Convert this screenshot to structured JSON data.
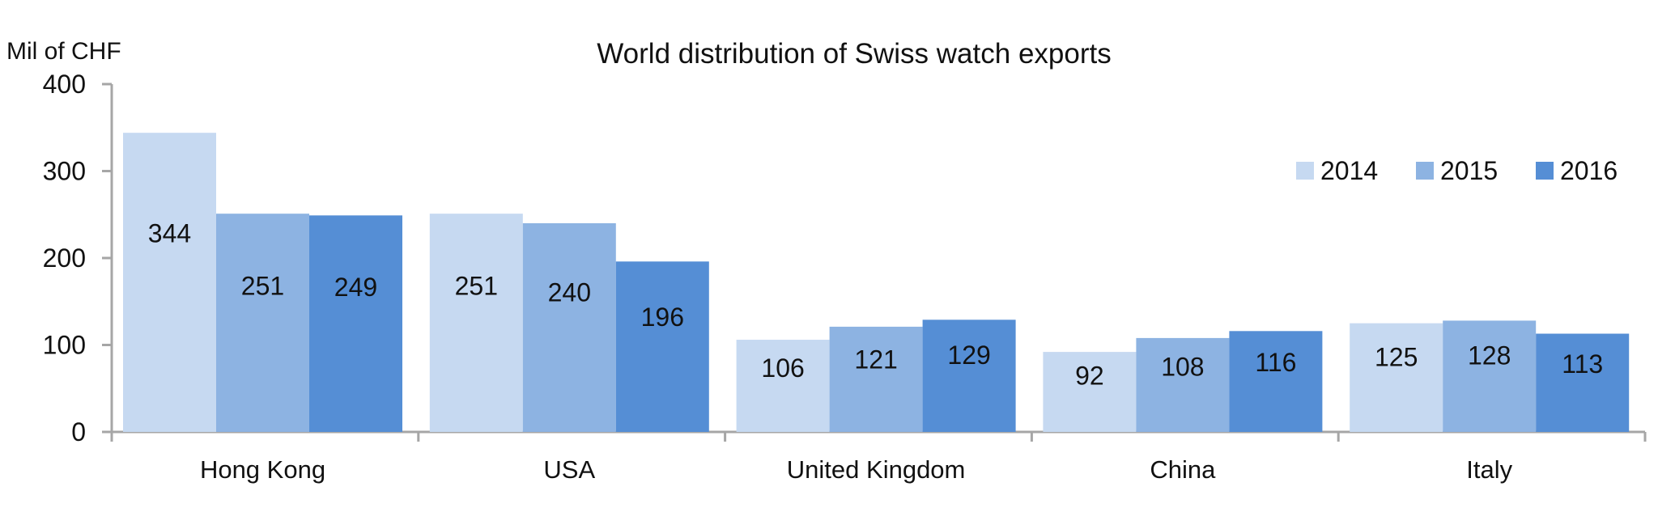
{
  "chart_data": {
    "type": "bar",
    "title": "World distribution of Swiss watch exports",
    "ylabel": "Mil of CHF",
    "xlabel": "",
    "categories": [
      "Hong Kong",
      "USA",
      "United Kingdom",
      "China",
      "Italy"
    ],
    "series": [
      {
        "name": "2014",
        "color": "#C6D9F1",
        "values": [
          344,
          251,
          106,
          92,
          125
        ]
      },
      {
        "name": "2015",
        "color": "#8DB3E2",
        "values": [
          251,
          240,
          121,
          108,
          128
        ]
      },
      {
        "name": "2016",
        "color": "#558ED5",
        "values": [
          249,
          196,
          129,
          116,
          113
        ]
      }
    ],
    "ylim": [
      0,
      400
    ],
    "yticks": [
      0,
      100,
      200,
      300,
      400
    ],
    "legend": "top-right",
    "grid": false
  }
}
